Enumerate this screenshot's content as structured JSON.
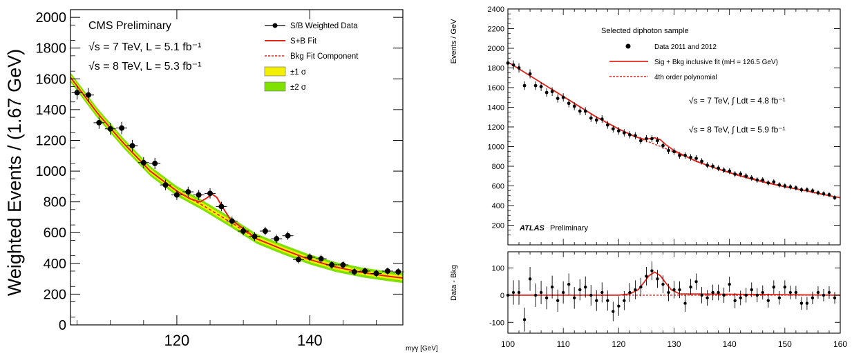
{
  "chart_data": [
    {
      "type": "scatter",
      "panel": "cms",
      "ylabel": "Weighted Events / (1.67 GeV)",
      "xlabel": "mγγ [GeV]",
      "xlim": [
        104,
        154
      ],
      "ylim": [
        0,
        2050
      ],
      "x_ticks": [
        120,
        140
      ],
      "y_ticks": [
        0,
        200,
        400,
        600,
        800,
        1000,
        1200,
        1400,
        1600,
        1800,
        2000
      ],
      "x_tick_labels": [
        "120",
        "140"
      ],
      "y_tick_labels": [
        "0",
        "200",
        "400",
        "600",
        "800",
        "1000",
        "1200",
        "1400",
        "1600",
        "1800",
        "2000"
      ],
      "annotations": [
        "CMS Preliminary",
        "√s = 7 TeV, L = 5.1 fb⁻¹",
        "√s = 8 TeV, L = 5.3 fb⁻¹"
      ],
      "legend_position": "top-right",
      "legend": [
        {
          "label": "S/B Weighted Data",
          "kind": "marker"
        },
        {
          "label": "S+B Fit",
          "kind": "line"
        },
        {
          "label": "Bkg Fit Component",
          "kind": "dashed"
        },
        {
          "label": "±1 σ",
          "kind": "box",
          "color": "#f2ef00"
        },
        {
          "label": "±2 σ",
          "kind": "box",
          "color": "#7ee100"
        }
      ],
      "colors": {
        "fit": "#e0241b",
        "band1": "#f2ef00",
        "band2": "#7ee100",
        "data": "#000000"
      },
      "series": [
        {
          "name": "S/B Weighted Data",
          "x": [
            105,
            106.7,
            108.3,
            110,
            111.7,
            113.3,
            115,
            116.7,
            118.3,
            120,
            121.7,
            123.3,
            125,
            126.7,
            128.3,
            130,
            131.7,
            133.3,
            135,
            136.7,
            138.3,
            140,
            141.7,
            143.3,
            145,
            146.7,
            148.3,
            150,
            151.7,
            153.3
          ],
          "y": [
            1510,
            1495,
            1315,
            1275,
            1280,
            1165,
            1055,
            1050,
            910,
            845,
            865,
            845,
            855,
            770,
            675,
            610,
            575,
            610,
            560,
            580,
            425,
            440,
            430,
            390,
            390,
            345,
            350,
            335,
            350,
            345
          ],
          "yerr": [
            45,
            45,
            40,
            40,
            40,
            38,
            36,
            36,
            34,
            33,
            33,
            33,
            33,
            31,
            30,
            28,
            28,
            28,
            27,
            27,
            25,
            25,
            25,
            24,
            24,
            23,
            23,
            23,
            23,
            23
          ]
        },
        {
          "name": "S+B Fit",
          "x": [
            104,
            108,
            112,
            116,
            120,
            122,
            123.5,
            124.5,
            125.3,
            126,
            126.8,
            128,
            132,
            136,
            140,
            144,
            148,
            152,
            154
          ],
          "y": [
            1610,
            1380,
            1180,
            1000,
            870,
            820,
            800,
            825,
            850,
            830,
            770,
            690,
            560,
            490,
            425,
            375,
            340,
            315,
            305
          ]
        },
        {
          "name": "Bkg Fit Component",
          "x": [
            104,
            108,
            112,
            116,
            120,
            124,
            128,
            132,
            136,
            140,
            144,
            148,
            152,
            154
          ],
          "y": [
            1610,
            1380,
            1180,
            1000,
            870,
            775,
            670,
            560,
            490,
            425,
            375,
            340,
            315,
            305
          ]
        }
      ]
    },
    {
      "type": "scatter",
      "panel": "atlas-main",
      "ylabel": "Events / GeV",
      "xlim": [
        100,
        160
      ],
      "ylim": [
        0,
        2400
      ],
      "y_ticks": [
        200,
        400,
        600,
        800,
        1000,
        1200,
        1400,
        1600,
        1800,
        2000,
        2200,
        2400
      ],
      "y_tick_labels": [
        "200",
        "400",
        "600",
        "800",
        "1000",
        "1200",
        "1400",
        "1600",
        "1800",
        "2000",
        "2200",
        "2400"
      ],
      "annotations": [
        "Selected diphoton sample",
        "√s = 7 TeV, ∫ Ldt = 4.8 fb⁻¹",
        "√s = 8 TeV, ∫ Ldt = 5.9 fb⁻¹",
        "ATLAS",
        "Preliminary"
      ],
      "legend_position": "top-right",
      "legend": [
        {
          "label": "Data 2011 and 2012",
          "kind": "marker"
        },
        {
          "label": "Sig + Bkg inclusive fit (mH = 126.5 GeV)",
          "kind": "line"
        },
        {
          "label": "4th order polynomial",
          "kind": "dashed"
        }
      ],
      "colors": {
        "fit": "#e0241b",
        "data": "#000000"
      },
      "series": [
        {
          "name": "Data 2011 and 2012",
          "x": [
            100,
            101,
            102,
            103,
            104,
            105,
            106,
            107,
            108,
            109,
            110,
            111,
            112,
            113,
            114,
            115,
            116,
            117,
            118,
            119,
            120,
            121,
            122,
            123,
            124,
            125,
            126,
            127,
            128,
            129,
            130,
            131,
            132,
            133,
            134,
            135,
            136,
            137,
            138,
            139,
            140,
            141,
            142,
            143,
            144,
            145,
            146,
            147,
            148,
            149,
            150,
            151,
            152,
            153,
            154,
            155,
            156,
            157,
            158,
            159
          ],
          "y": [
            1850,
            1830,
            1800,
            1620,
            1740,
            1620,
            1610,
            1550,
            1560,
            1490,
            1500,
            1440,
            1410,
            1360,
            1360,
            1290,
            1270,
            1280,
            1220,
            1180,
            1160,
            1140,
            1120,
            1110,
            1060,
            1080,
            1080,
            1060,
            1010,
            960,
            950,
            910,
            910,
            890,
            880,
            850,
            810,
            800,
            780,
            760,
            750,
            720,
            720,
            700,
            680,
            660,
            660,
            630,
            640,
            610,
            600,
            590,
            580,
            560,
            560,
            550,
            530,
            520,
            510,
            480
          ]
        },
        {
          "name": "Sig + Bkg inclusive fit (mH = 126.5 GeV)",
          "x": [
            100,
            104,
            108,
            112,
            116,
            120,
            123,
            124.5,
            125.5,
            126.5,
            127.5,
            128.5,
            130,
            134,
            138,
            142,
            146,
            150,
            154,
            158,
            160
          ],
          "y": [
            1860,
            1720,
            1580,
            1440,
            1300,
            1180,
            1100,
            1075,
            1080,
            1090,
            1070,
            1020,
            960,
            850,
            770,
            700,
            640,
            590,
            550,
            500,
            480
          ]
        },
        {
          "name": "4th order polynomial",
          "x": [
            100,
            104,
            108,
            112,
            116,
            120,
            124,
            128,
            132,
            136,
            140,
            144,
            148,
            152,
            156,
            160
          ],
          "y": [
            1860,
            1720,
            1580,
            1440,
            1300,
            1180,
            1080,
            990,
            900,
            810,
            740,
            680,
            620,
            570,
            520,
            480
          ]
        }
      ]
    },
    {
      "type": "scatter",
      "panel": "atlas-residual",
      "ylabel": "Data - Bkg",
      "xlim": [
        100,
        160
      ],
      "ylim": [
        -140,
        160
      ],
      "x_ticks": [
        100,
        110,
        120,
        130,
        140,
        150,
        160
      ],
      "x_tick_labels": [
        "100",
        "110",
        "120",
        "130",
        "140",
        "150",
        "160"
      ],
      "y_ticks": [
        -100,
        0,
        100
      ],
      "y_tick_labels": [
        "-100",
        "0",
        "100"
      ],
      "colors": {
        "fit": "#e0241b",
        "data": "#000000"
      },
      "series": [
        {
          "name": "Data - Bkg",
          "x": [
            100,
            101,
            102,
            103,
            104,
            105,
            106,
            107,
            108,
            109,
            110,
            111,
            112,
            113,
            114,
            115,
            116,
            117,
            118,
            119,
            120,
            121,
            122,
            123,
            124,
            125,
            126,
            127,
            128,
            129,
            130,
            131,
            132,
            133,
            134,
            135,
            136,
            137,
            138,
            139,
            140,
            141,
            142,
            143,
            144,
            145,
            146,
            147,
            148,
            149,
            150,
            151,
            152,
            153,
            154,
            155,
            156,
            157,
            158,
            159
          ],
          "y": [
            0,
            10,
            10,
            -90,
            60,
            0,
            10,
            -10,
            30,
            -20,
            10,
            40,
            -10,
            20,
            30,
            0,
            -20,
            10,
            -20,
            -60,
            -40,
            -20,
            10,
            20,
            30,
            70,
            90,
            60,
            40,
            10,
            20,
            20,
            -30,
            30,
            50,
            0,
            -10,
            10,
            10,
            0,
            40,
            -20,
            -10,
            0,
            20,
            0,
            10,
            -20,
            30,
            -10,
            30,
            10,
            10,
            -30,
            -30,
            -10,
            10,
            0,
            10,
            -10
          ],
          "yerr": [
            45,
            45,
            45,
            44,
            44,
            43,
            43,
            42,
            42,
            41,
            41,
            40,
            40,
            39,
            39,
            38,
            38,
            37,
            37,
            36,
            36,
            35,
            35,
            35,
            34,
            34,
            34,
            33,
            33,
            32,
            32,
            31,
            31,
            30,
            30,
            30,
            29,
            29,
            29,
            28,
            28,
            28,
            27,
            27,
            27,
            26,
            26,
            26,
            25,
            25,
            25,
            25,
            24,
            24,
            24,
            23,
            23,
            23,
            23,
            22
          ]
        },
        {
          "name": "Sig fit",
          "x": [
            100,
            120,
            122,
            123.5,
            124.5,
            125.5,
            126.5,
            127.5,
            128.5,
            129.5,
            131,
            160
          ],
          "y": [
            0,
            0,
            5,
            20,
            45,
            72,
            85,
            72,
            45,
            20,
            5,
            0
          ]
        }
      ]
    }
  ]
}
